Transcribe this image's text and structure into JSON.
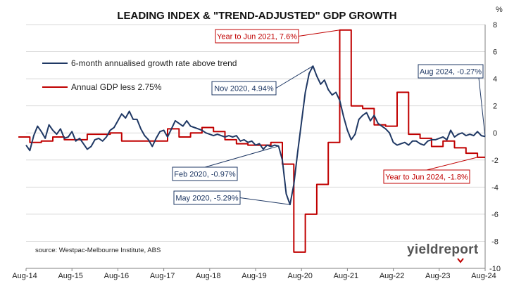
{
  "chart_data": {
    "type": "line",
    "title": "LEADING INDEX & \"TREND-ADJUSTED\" GDP GROWTH",
    "yunit": "%",
    "ylim": [
      -10,
      8
    ],
    "yticks": [
      -10,
      -8,
      -6,
      -4,
      -2,
      0,
      2,
      4,
      6,
      8
    ],
    "xlim": [
      "2014-08",
      "2024-08"
    ],
    "xticks": [
      "Aug-14",
      "Aug-15",
      "Aug-16",
      "Aug-17",
      "Aug-18",
      "Aug-19",
      "Aug-20",
      "Aug-21",
      "Aug-22",
      "Aug-23",
      "Aug-24"
    ],
    "grid": "y-major",
    "legend_position": "top-left",
    "colors": {
      "navy": "#1f3864",
      "red": "#c00000",
      "grid": "#d9d9d9",
      "axis": "#808080"
    },
    "series": [
      {
        "name": "6-month annualised growth rate above trend",
        "color": "#1f3864",
        "step": false,
        "points": [
          [
            "2014-08",
            -0.9
          ],
          [
            "2014-09",
            -1.3
          ],
          [
            "2014-10",
            -0.2
          ],
          [
            "2014-11",
            0.5
          ],
          [
            "2014-12",
            0.1
          ],
          [
            "2015-01",
            -0.4
          ],
          [
            "2015-02",
            0.6
          ],
          [
            "2015-03",
            0.2
          ],
          [
            "2015-04",
            -0.1
          ],
          [
            "2015-05",
            0.3
          ],
          [
            "2015-06",
            -0.4
          ],
          [
            "2015-07",
            -0.3
          ],
          [
            "2015-08",
            0.1
          ],
          [
            "2015-09",
            -0.6
          ],
          [
            "2015-10",
            -0.4
          ],
          [
            "2015-11",
            -0.8
          ],
          [
            "2015-12",
            -1.2
          ],
          [
            "2016-01",
            -1.0
          ],
          [
            "2016-02",
            -0.5
          ],
          [
            "2016-03",
            -0.4
          ],
          [
            "2016-04",
            -0.6
          ],
          [
            "2016-05",
            -0.3
          ],
          [
            "2016-06",
            0.2
          ],
          [
            "2016-07",
            0.4
          ],
          [
            "2016-08",
            0.9
          ],
          [
            "2016-09",
            1.4
          ],
          [
            "2016-10",
            1.1
          ],
          [
            "2016-11",
            1.6
          ],
          [
            "2016-12",
            1.0
          ],
          [
            "2017-01",
            1.0
          ],
          [
            "2017-02",
            0.3
          ],
          [
            "2017-03",
            -0.2
          ],
          [
            "2017-04",
            -0.5
          ],
          [
            "2017-05",
            -1.0
          ],
          [
            "2017-06",
            -0.4
          ],
          [
            "2017-07",
            0.1
          ],
          [
            "2017-08",
            0.2
          ],
          [
            "2017-09",
            -0.3
          ],
          [
            "2017-10",
            0.3
          ],
          [
            "2017-11",
            0.9
          ],
          [
            "2017-12",
            0.7
          ],
          [
            "2018-01",
            0.5
          ],
          [
            "2018-02",
            0.9
          ],
          [
            "2018-03",
            0.5
          ],
          [
            "2018-04",
            0.4
          ],
          [
            "2018-05",
            0.3
          ],
          [
            "2018-06",
            0.2
          ],
          [
            "2018-07",
            0.0
          ],
          [
            "2018-08",
            -0.1
          ],
          [
            "2018-09",
            -0.2
          ],
          [
            "2018-10",
            -0.1
          ],
          [
            "2018-11",
            -0.2
          ],
          [
            "2018-12",
            -0.3
          ],
          [
            "2019-01",
            -0.2
          ],
          [
            "2019-02",
            -0.3
          ],
          [
            "2019-03",
            -0.2
          ],
          [
            "2019-04",
            -0.6
          ],
          [
            "2019-05",
            -0.5
          ],
          [
            "2019-06",
            -0.7
          ],
          [
            "2019-07",
            -0.6
          ],
          [
            "2019-08",
            -0.9
          ],
          [
            "2019-09",
            -0.8
          ],
          [
            "2019-10",
            -1.2
          ],
          [
            "2019-11",
            -0.9
          ],
          [
            "2019-12",
            -1.0
          ],
          [
            "2020-01",
            -0.9
          ],
          [
            "2020-02",
            -0.97
          ],
          [
            "2020-03",
            -2.0
          ],
          [
            "2020-04",
            -4.5
          ],
          [
            "2020-05",
            -5.29
          ],
          [
            "2020-06",
            -3.8
          ],
          [
            "2020-07",
            -1.4
          ],
          [
            "2020-08",
            0.8
          ],
          [
            "2020-09",
            3.0
          ],
          [
            "2020-10",
            4.4
          ],
          [
            "2020-11",
            4.94
          ],
          [
            "2020-12",
            4.2
          ],
          [
            "2021-01",
            3.6
          ],
          [
            "2021-02",
            3.9
          ],
          [
            "2021-03",
            3.2
          ],
          [
            "2021-04",
            2.8
          ],
          [
            "2021-05",
            3.0
          ],
          [
            "2021-06",
            2.4
          ],
          [
            "2021-07",
            1.2
          ],
          [
            "2021-08",
            0.2
          ],
          [
            "2021-09",
            -0.5
          ],
          [
            "2021-10",
            -0.1
          ],
          [
            "2021-11",
            1.0
          ],
          [
            "2021-12",
            1.3
          ],
          [
            "2022-01",
            1.5
          ],
          [
            "2022-02",
            0.9
          ],
          [
            "2022-03",
            1.3
          ],
          [
            "2022-04",
            0.7
          ],
          [
            "2022-05",
            0.5
          ],
          [
            "2022-06",
            0.3
          ],
          [
            "2022-07",
            0.0
          ],
          [
            "2022-08",
            -0.7
          ],
          [
            "2022-09",
            -0.9
          ],
          [
            "2022-10",
            -0.8
          ],
          [
            "2022-11",
            -0.7
          ],
          [
            "2022-12",
            -0.9
          ],
          [
            "2023-01",
            -0.6
          ],
          [
            "2023-02",
            -0.6
          ],
          [
            "2023-03",
            -0.8
          ],
          [
            "2023-04",
            -0.9
          ],
          [
            "2023-05",
            -0.6
          ],
          [
            "2023-06",
            -0.5
          ],
          [
            "2023-07",
            -0.5
          ],
          [
            "2023-08",
            -0.4
          ],
          [
            "2023-09",
            -0.3
          ],
          [
            "2023-10",
            -0.5
          ],
          [
            "2023-11",
            0.2
          ],
          [
            "2023-12",
            -0.3
          ],
          [
            "2024-01",
            -0.1
          ],
          [
            "2024-02",
            0.0
          ],
          [
            "2024-03",
            -0.2
          ],
          [
            "2024-04",
            -0.1
          ],
          [
            "2024-05",
            -0.2
          ],
          [
            "2024-06",
            0.1
          ],
          [
            "2024-07",
            -0.2
          ],
          [
            "2024-08",
            -0.27
          ]
        ]
      },
      {
        "name": "Annual GDP less 2.75%",
        "color": "#c00000",
        "step": true,
        "points": [
          [
            "2014-06",
            -0.3
          ],
          [
            "2014-09",
            -0.7
          ],
          [
            "2014-12",
            -0.6
          ],
          [
            "2015-03",
            -0.3
          ],
          [
            "2015-06",
            -0.5
          ],
          [
            "2015-09",
            -0.5
          ],
          [
            "2015-12",
            -0.1
          ],
          [
            "2016-03",
            -0.1
          ],
          [
            "2016-06",
            0.0
          ],
          [
            "2016-09",
            -0.6
          ],
          [
            "2016-12",
            -0.6
          ],
          [
            "2017-03",
            -0.6
          ],
          [
            "2017-06",
            -0.6
          ],
          [
            "2017-09",
            0.3
          ],
          [
            "2017-12",
            -0.3
          ],
          [
            "2018-03",
            0.0
          ],
          [
            "2018-06",
            0.4
          ],
          [
            "2018-09",
            0.1
          ],
          [
            "2018-12",
            -0.5
          ],
          [
            "2019-03",
            -0.8
          ],
          [
            "2019-06",
            -0.9
          ],
          [
            "2019-09",
            -0.9
          ],
          [
            "2019-12",
            -0.7
          ],
          [
            "2020-03",
            -2.3
          ],
          [
            "2020-06",
            -8.8
          ],
          [
            "2020-09",
            -6.0
          ],
          [
            "2020-12",
            -3.8
          ],
          [
            "2021-03",
            -0.7
          ],
          [
            "2021-06",
            7.6
          ],
          [
            "2021-09",
            2.0
          ],
          [
            "2021-12",
            1.8
          ],
          [
            "2022-03",
            0.6
          ],
          [
            "2022-06",
            0.5
          ],
          [
            "2022-09",
            3.0
          ],
          [
            "2022-12",
            -0.1
          ],
          [
            "2023-03",
            -0.4
          ],
          [
            "2023-06",
            -1.0
          ],
          [
            "2023-09",
            -0.6
          ],
          [
            "2023-12",
            -1.1
          ],
          [
            "2024-03",
            -1.5
          ],
          [
            "2024-06",
            -1.8
          ],
          [
            "2024-08",
            -1.8
          ]
        ]
      }
    ],
    "annotations": [
      {
        "text": "Year to Jun 2021, 7.6%",
        "point": [
          "2021-06",
          7.6
        ],
        "color": "#c00000"
      },
      {
        "text": "Nov 2020, 4.94%",
        "point": [
          "2020-11",
          4.94
        ],
        "color": "#1f3864"
      },
      {
        "text": "Aug 2024, -0.27%",
        "point": [
          "2024-08",
          -0.27
        ],
        "color": "#1f3864"
      },
      {
        "text": "Feb 2020, -0.97%",
        "point": [
          "2020-02",
          -0.97
        ],
        "color": "#1f3864"
      },
      {
        "text": "May 2020, -5.29%",
        "point": [
          "2020-05",
          -5.29
        ],
        "color": "#1f3864"
      },
      {
        "text": "Year to Jun 2024, -1.8%",
        "point": [
          "2024-06",
          -1.8
        ],
        "color": "#c00000"
      }
    ],
    "source": "source: Westpac-Melbourne Institute, ABS",
    "brand": "yieldreport"
  }
}
